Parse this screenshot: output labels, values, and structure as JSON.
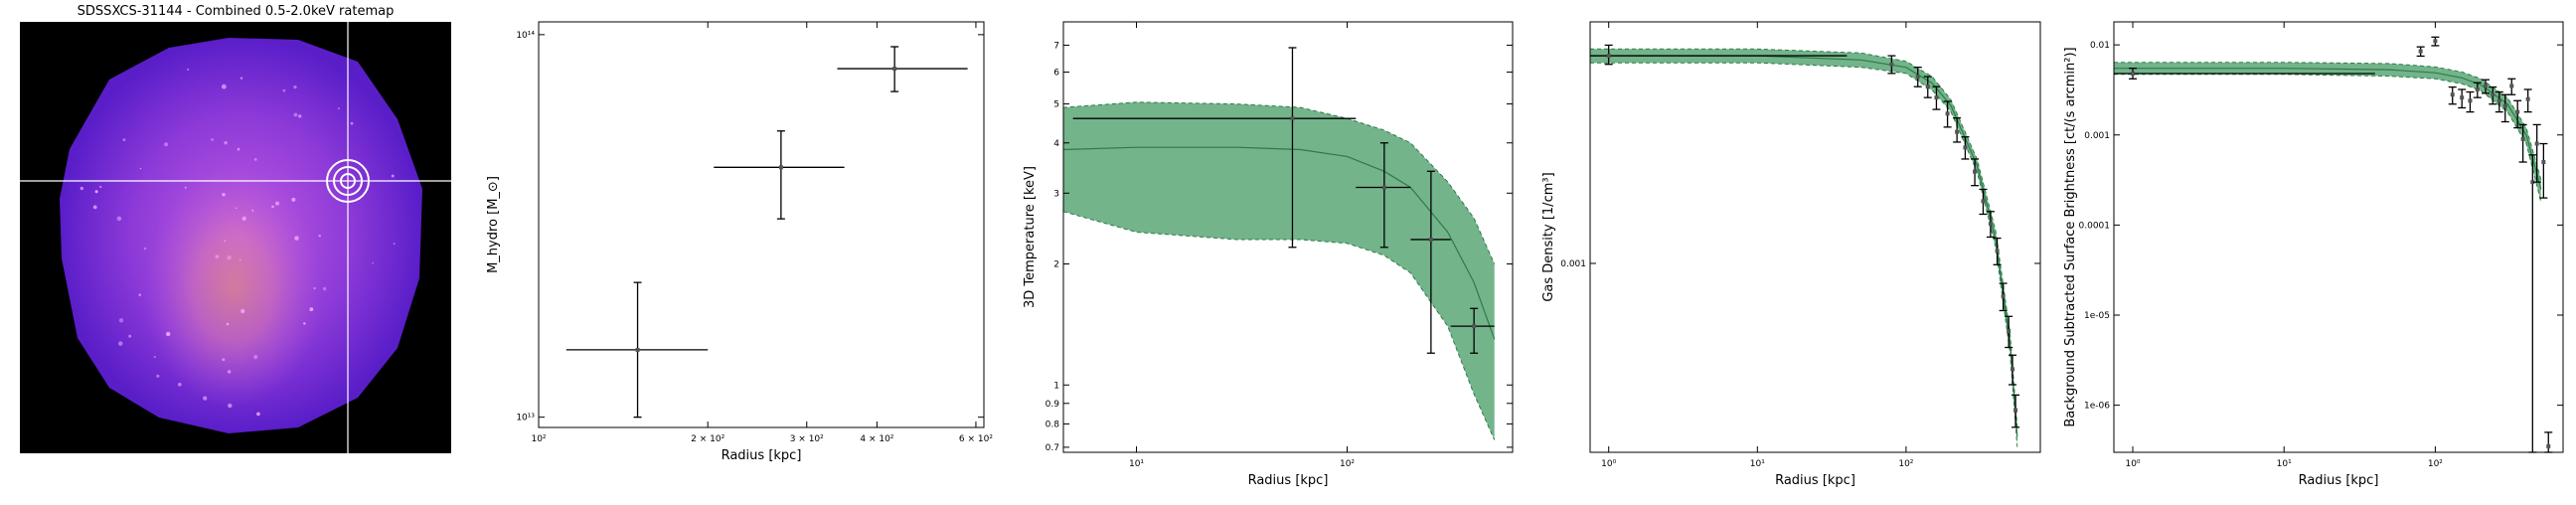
{
  "image_panel": {
    "title": "SDSSXCS-31144 - Combined 0.5-2.0keV ratemap"
  },
  "chart_data": [
    {
      "type": "scatter",
      "id": "mass",
      "xlabel": "Radius [kpc]",
      "ylabel": "M_hydro [M_⊙]",
      "xscale": "log",
      "yscale": "log",
      "xlim": [
        100,
        620
      ],
      "ylim": [
        9400000000000.0,
        108000000000000.0
      ],
      "xticks": [
        {
          "v": 100,
          "label": "10²"
        },
        {
          "v": 200,
          "label": "2 × 10²"
        },
        {
          "v": 300,
          "label": "3 × 10²"
        },
        {
          "v": 400,
          "label": "4 × 10²"
        },
        {
          "v": 600,
          "label": "6 × 10²"
        }
      ],
      "yticks": [
        {
          "v": 10000000000000.0,
          "label": "10¹³"
        },
        {
          "v": 100000000000000.0,
          "label": "10¹⁴"
        }
      ],
      "points": [
        {
          "x": 150,
          "xlo": 112,
          "xhi": 200,
          "y": 15000000000000.0,
          "ylo": 10000000000000.0,
          "yhi": 22500000000000.0
        },
        {
          "x": 270,
          "xlo": 205,
          "xhi": 350,
          "y": 45000000000000.0,
          "ylo": 33000000000000.0,
          "yhi": 56000000000000.0
        },
        {
          "x": 430,
          "xlo": 340,
          "xhi": 580,
          "y": 81500000000000.0,
          "ylo": 71000000000000.0,
          "yhi": 93000000000000.0
        }
      ]
    },
    {
      "type": "line",
      "id": "temperature",
      "xlabel": "Radius [kpc]",
      "ylabel": "3D Temperature [keV]",
      "xscale": "log",
      "yscale": "log",
      "xlim": [
        4.5,
        610
      ],
      "ylim": [
        0.68,
        8.0
      ],
      "xticks": [
        {
          "v": 10,
          "label": "10¹"
        },
        {
          "v": 100,
          "label": "10²"
        }
      ],
      "yticks": [
        {
          "v": 0.7,
          "label": "0.7"
        },
        {
          "v": 0.8,
          "label": "0.8"
        },
        {
          "v": 0.9,
          "label": "0.9"
        },
        {
          "v": 1,
          "label": "1"
        },
        {
          "v": 2,
          "label": "2"
        },
        {
          "v": 3,
          "label": "3"
        },
        {
          "v": 4,
          "label": "4"
        },
        {
          "v": 5,
          "label": "5"
        },
        {
          "v": 6,
          "label": "6"
        },
        {
          "v": 7,
          "label": "7"
        }
      ],
      "model": {
        "x": [
          4.5,
          10,
          30,
          60,
          100,
          150,
          200,
          300,
          400,
          500
        ],
        "y": [
          3.85,
          3.9,
          3.9,
          3.85,
          3.7,
          3.4,
          3.1,
          2.4,
          1.8,
          1.3
        ],
        "ylo": [
          2.7,
          2.4,
          2.3,
          2.3,
          2.25,
          2.1,
          1.9,
          1.4,
          0.95,
          0.73
        ],
        "yhi": [
          4.9,
          5.05,
          5.0,
          4.9,
          4.6,
          4.3,
          4.0,
          3.2,
          2.6,
          2.0
        ]
      },
      "colors": {
        "band": "#5aa776",
        "edge": "#2f7a4a"
      },
      "points": [
        {
          "x": 55,
          "xlo": 5,
          "xhi": 110,
          "y": 4.6,
          "ylo": 2.2,
          "yhi": 6.9
        },
        {
          "x": 150,
          "xlo": 110,
          "xhi": 200,
          "y": 3.1,
          "ylo": 2.2,
          "yhi": 4.0
        },
        {
          "x": 250,
          "xlo": 200,
          "xhi": 310,
          "y": 2.3,
          "ylo": 1.2,
          "yhi": 3.4
        },
        {
          "x": 400,
          "xlo": 310,
          "xhi": 500,
          "y": 1.4,
          "ylo": 1.2,
          "yhi": 1.55
        }
      ]
    },
    {
      "type": "line",
      "id": "density",
      "xlabel": "Radius [kpc]",
      "ylabel": "Gas Density [1/cm³]",
      "xscale": "log",
      "yscale": "log",
      "xlim": [
        0.75,
        800
      ],
      "ylim": [
        0.00024,
        0.0062
      ],
      "xticks": [
        {
          "v": 1,
          "label": "10⁰"
        },
        {
          "v": 10,
          "label": "10¹"
        },
        {
          "v": 100,
          "label": "10²"
        }
      ],
      "yticks": [
        {
          "v": 0.001,
          "label": "0.001"
        }
      ],
      "model": {
        "x": [
          0.75,
          10,
          50,
          100,
          150,
          200,
          300,
          400,
          500,
          560
        ],
        "y": [
          0.0048,
          0.0048,
          0.00465,
          0.0044,
          0.0039,
          0.0033,
          0.0021,
          0.0012,
          0.00055,
          0.00027
        ],
        "ylo": [
          0.00455,
          0.00455,
          0.0044,
          0.0042,
          0.0037,
          0.00315,
          0.002,
          0.00113,
          0.00051,
          0.00025
        ],
        "yhi": [
          0.00505,
          0.00505,
          0.0049,
          0.0046,
          0.0041,
          0.00345,
          0.0022,
          0.00128,
          0.00059,
          0.00029
        ]
      },
      "colors": {
        "band": "#5aa776",
        "edge": "#2f7a4a"
      },
      "points": [
        {
          "x": 1.0,
          "xlo": 0.75,
          "xhi": 40,
          "y": 0.0048,
          "ylo": 0.0045,
          "yhi": 0.0052
        },
        {
          "x": 80,
          "y": 0.0045,
          "ylo": 0.0042,
          "yhi": 0.0048
        },
        {
          "x": 120,
          "y": 0.0041,
          "ylo": 0.0038,
          "yhi": 0.0044
        },
        {
          "x": 140,
          "y": 0.0038,
          "ylo": 0.0035,
          "yhi": 0.0041
        },
        {
          "x": 160,
          "y": 0.0035,
          "ylo": 0.0032,
          "yhi": 0.0038
        },
        {
          "x": 190,
          "y": 0.0031,
          "ylo": 0.0028,
          "yhi": 0.0034
        },
        {
          "x": 220,
          "y": 0.0027,
          "ylo": 0.0025,
          "yhi": 0.003
        },
        {
          "x": 250,
          "y": 0.0024,
          "ylo": 0.0022,
          "yhi": 0.0026
        },
        {
          "x": 290,
          "y": 0.002,
          "ylo": 0.0018,
          "yhi": 0.0022
        },
        {
          "x": 330,
          "y": 0.0016,
          "ylo": 0.00145,
          "yhi": 0.00175
        },
        {
          "x": 370,
          "y": 0.00135,
          "ylo": 0.00122,
          "yhi": 0.00148
        },
        {
          "x": 410,
          "y": 0.0011,
          "ylo": 0.00099,
          "yhi": 0.00121
        },
        {
          "x": 450,
          "y": 0.00078,
          "ylo": 0.0007,
          "yhi": 0.00086
        },
        {
          "x": 490,
          "y": 0.0006,
          "ylo": 0.00053,
          "yhi": 0.00067
        },
        {
          "x": 520,
          "y": 0.00045,
          "ylo": 0.0004,
          "yhi": 0.0005
        },
        {
          "x": 545,
          "y": 0.00033,
          "ylo": 0.00029,
          "yhi": 0.00037
        }
      ]
    },
    {
      "type": "line",
      "id": "surface_brightness",
      "xlabel": "Radius [kpc]",
      "ylabel": "Background Subtracted Surface Brightness [ct/(s arcmin²)]",
      "xscale": "log",
      "yscale": "log",
      "xlim": [
        0.75,
        700
      ],
      "ylim": [
        3e-07,
        0.018
      ],
      "xticks": [
        {
          "v": 1,
          "label": "10⁰"
        },
        {
          "v": 10,
          "label": "10¹"
        },
        {
          "v": 100,
          "label": "10²"
        }
      ],
      "yticks": [
        {
          "v": 1e-06,
          "label": "1e-06"
        },
        {
          "v": 1e-05,
          "label": "1e-05"
        },
        {
          "v": 0.0001,
          "label": "0.0001"
        },
        {
          "v": 0.001,
          "label": "0.001"
        },
        {
          "v": 0.01,
          "label": "0.01"
        }
      ],
      "model": {
        "x": [
          0.75,
          10,
          50,
          100,
          150,
          200,
          300,
          400,
          500
        ],
        "y": [
          0.0055,
          0.0055,
          0.0053,
          0.0049,
          0.0043,
          0.0036,
          0.0022,
          0.001,
          0.00025
        ],
        "ylo": [
          0.0047,
          0.0047,
          0.0045,
          0.0042,
          0.0037,
          0.0031,
          0.0018,
          0.0008,
          0.00018
        ],
        "yhi": [
          0.0064,
          0.0064,
          0.0062,
          0.0057,
          0.005,
          0.0042,
          0.0026,
          0.0012,
          0.00032
        ]
      },
      "colors": {
        "band": "#5aa776",
        "edge": "#2f7a4a"
      },
      "points": [
        {
          "x": 1.0,
          "xlo": 0.75,
          "xhi": 40,
          "y": 0.0048,
          "ylo": 0.0042,
          "yhi": 0.0055
        },
        {
          "x": 80,
          "y": 0.0085,
          "ylo": 0.0075,
          "yhi": 0.0095
        },
        {
          "x": 100,
          "y": 0.011,
          "ylo": 0.0098,
          "yhi": 0.0122
        },
        {
          "x": 130,
          "y": 0.0028,
          "ylo": 0.0022,
          "yhi": 0.0034
        },
        {
          "x": 150,
          "y": 0.0026,
          "ylo": 0.002,
          "yhi": 0.0032
        },
        {
          "x": 170,
          "y": 0.0024,
          "ylo": 0.0018,
          "yhi": 0.003
        },
        {
          "x": 190,
          "y": 0.0032,
          "ylo": 0.0026,
          "yhi": 0.0038
        },
        {
          "x": 215,
          "y": 0.0035,
          "ylo": 0.0029,
          "yhi": 0.0041
        },
        {
          "x": 240,
          "y": 0.0028,
          "ylo": 0.0022,
          "yhi": 0.0034
        },
        {
          "x": 265,
          "y": 0.0024,
          "ylo": 0.0018,
          "yhi": 0.003
        },
        {
          "x": 290,
          "y": 0.0021,
          "ylo": 0.0014,
          "yhi": 0.0028
        },
        {
          "x": 320,
          "y": 0.0035,
          "ylo": 0.0028,
          "yhi": 0.0042
        },
        {
          "x": 350,
          "y": 0.0018,
          "ylo": 0.0012,
          "yhi": 0.0024
        },
        {
          "x": 380,
          "y": 0.0009,
          "ylo": 0.0005,
          "yhi": 0.0013
        },
        {
          "x": 410,
          "y": 0.0025,
          "ylo": 0.0018,
          "yhi": 0.0032
        },
        {
          "x": 440,
          "y": 0.0003,
          "ylo": 3e-07,
          "yhi": 0.0006
        },
        {
          "x": 470,
          "y": 0.0008,
          "ylo": 0.0003,
          "yhi": 0.0013
        },
        {
          "x": 520,
          "y": 0.0005,
          "ylo": 0.0002,
          "yhi": 0.0008
        },
        {
          "x": 560,
          "y": 3.5e-07,
          "ylo": 3e-07,
          "yhi": 5e-07
        }
      ]
    }
  ]
}
